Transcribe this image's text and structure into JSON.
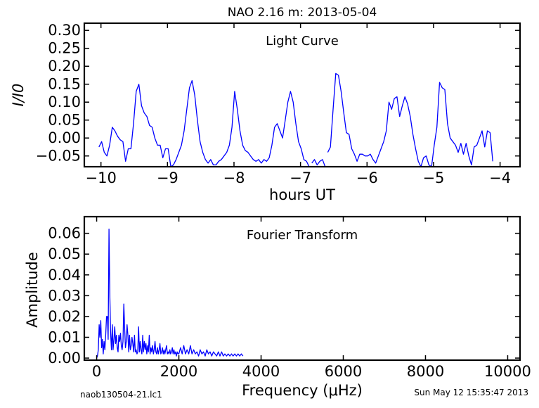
{
  "figure": {
    "title": "NAO 2.16 m:  2013-05-04",
    "footer_left": "naob130504-21.lc1",
    "footer_right": "Sun May 12 15:35:47 2013",
    "line_color": "#0000ff"
  },
  "chart_data": [
    {
      "type": "line",
      "title": "Light Curve",
      "xlabel": "hours UT",
      "ylabel": "I/I0",
      "xlim": [
        -10.25,
        -3.7
      ],
      "ylim": [
        -0.08,
        0.32
      ],
      "xticks": [
        -10,
        -9,
        -8,
        -7,
        -6,
        -5,
        -4
      ],
      "xtick_labels": [
        "−10",
        "−9",
        "−8",
        "−7",
        "−6",
        "−5",
        "−4"
      ],
      "yticks": [
        -0.05,
        0.0,
        0.05,
        0.1,
        0.15,
        0.2,
        0.25,
        0.3
      ],
      "ytick_labels": [
        "−0.05",
        "0.00",
        "0.05",
        "0.10",
        "0.15",
        "0.20",
        "0.25",
        "0.30"
      ],
      "grid": false,
      "series": [
        {
          "segments": [
            {
              "x": [
                -10.03,
                -9.99,
                -9.95,
                -9.91,
                -9.87,
                -9.83,
                -9.79,
                -9.75,
                -9.71,
                -9.67,
                -9.63,
                -9.59,
                -9.55,
                -9.51,
                -9.47,
                -9.43,
                -9.39,
                -9.35,
                -9.31,
                -9.27,
                -9.23,
                -9.19,
                -9.15,
                -9.11,
                -9.07,
                -9.03,
                -8.99,
                -8.95,
                -8.91,
                -8.87,
                -8.83,
                -8.79,
                -8.75,
                -8.71,
                -8.67,
                -8.63,
                -8.59,
                -8.55,
                -8.51,
                -8.47,
                -8.43,
                -8.39,
                -8.35,
                -8.31,
                -8.27,
                -8.23,
                -8.19,
                -8.15,
                -8.11,
                -8.07,
                -8.03,
                -7.99,
                -7.95,
                -7.91,
                -7.87,
                -7.83,
                -7.79,
                -7.75,
                -7.71,
                -7.67,
                -7.63,
                -7.59,
                -7.55,
                -7.51,
                -7.47,
                -7.43,
                -7.39,
                -7.35,
                -7.31,
                -7.27,
                -7.23,
                -7.19,
                -7.15,
                -7.11,
                -7.07,
                -7.03,
                -6.99,
                -6.95,
                -6.91,
                -6.87
              ],
              "y": [
                -0.025,
                -0.01,
                -0.04,
                -0.05,
                -0.02,
                0.03,
                0.02,
                0.005,
                -0.005,
                -0.01,
                -0.065,
                -0.03,
                -0.03,
                0.04,
                0.13,
                0.15,
                0.09,
                0.07,
                0.06,
                0.035,
                0.03,
                0.0,
                -0.02,
                -0.02,
                -0.055,
                -0.03,
                -0.03,
                -0.08,
                -0.075,
                -0.06,
                -0.04,
                -0.02,
                0.02,
                0.08,
                0.14,
                0.16,
                0.12,
                0.05,
                -0.01,
                -0.04,
                -0.06,
                -0.07,
                -0.06,
                -0.075,
                -0.075,
                -0.065,
                -0.06,
                -0.05,
                -0.04,
                -0.02,
                0.03,
                0.13,
                0.08,
                0.02,
                -0.02,
                -0.035,
                -0.04,
                -0.05,
                -0.06,
                -0.065,
                -0.06,
                -0.07,
                -0.06,
                -0.065,
                -0.055,
                -0.02,
                0.03,
                0.04,
                0.02,
                0.0,
                0.05,
                0.1,
                0.13,
                0.1,
                0.04,
                -0.01,
                -0.03,
                -0.06,
                -0.065,
                -0.08
              ]
            },
            {
              "x": [
                -6.83,
                -6.79,
                -6.75,
                -6.71,
                -6.67,
                -6.63
              ],
              "y": [
                -0.07,
                -0.06,
                -0.075,
                -0.065,
                -0.06,
                -0.08
              ]
            },
            {
              "x": [
                -6.59,
                -6.55,
                -6.51,
                -6.47,
                -6.43,
                -6.39,
                -6.35,
                -6.31,
                -6.27,
                -6.23,
                -6.19,
                -6.15,
                -6.11,
                -6.07,
                -6.03,
                -5.99,
                -5.95,
                -5.91,
                -5.87,
                -5.83,
                -5.79,
                -5.75,
                -5.71,
                -5.67,
                -5.63,
                -5.59,
                -5.55,
                -5.51,
                -5.47,
                -5.43,
                -5.39,
                -5.35,
                -5.31,
                -5.27,
                -5.23,
                -5.19,
                -5.15,
                -5.11,
                -5.07,
                -5.03,
                -4.99,
                -4.95,
                -4.91,
                -4.87,
                -4.83,
                -4.79,
                -4.75,
                -4.71,
                -4.67,
                -4.63,
                -4.59,
                -4.55,
                -4.51,
                -4.47,
                -4.43,
                -4.39,
                -4.35,
                -4.31,
                -4.27,
                -4.23,
                -4.19,
                -4.15,
                -4.11,
                -4.07,
                -4.03
              ],
              "y": [
                -0.04,
                -0.025,
                0.08,
                0.18,
                0.175,
                0.13,
                0.07,
                0.015,
                0.01,
                -0.03,
                -0.045,
                -0.065,
                -0.045,
                -0.045,
                -0.05,
                -0.05,
                -0.045,
                -0.06,
                -0.07,
                -0.05,
                -0.03,
                -0.01,
                0.02,
                0.1,
                0.08,
                0.11,
                0.115,
                0.06,
                0.09,
                0.115,
                0.095,
                0.06,
                0.01,
                -0.03,
                -0.065,
                -0.08,
                -0.055,
                -0.05,
                -0.075,
                -0.08,
                -0.02,
                0.03,
                0.155,
                0.14,
                0.135,
                0.04,
                0.0,
                -0.01,
                -0.02,
                -0.04,
                -0.015,
                -0.045,
                -0.015,
                -0.05,
                -0.075,
                -0.025,
                -0.02,
                0.0,
                0.02,
                -0.025,
                0.02,
                0.015,
                -0.065,
                null,
                null
              ],
              "y_end": [
                -0.07
              ]
            }
          ]
        }
      ]
    },
    {
      "type": "line",
      "title": "Fourier Transform",
      "xlabel": "Frequency (μHz)",
      "ylabel": "Amplitude",
      "xlim": [
        -300,
        10300
      ],
      "ylim": [
        -0.001,
        0.068
      ],
      "xticks": [
        0,
        2000,
        4000,
        6000,
        8000,
        10000
      ],
      "xtick_labels": [
        "0",
        "2000",
        "4000",
        "6000",
        "8000",
        "10000"
      ],
      "yticks": [
        0.0,
        0.01,
        0.02,
        0.03,
        0.04,
        0.05,
        0.06
      ],
      "ytick_labels": [
        "0.00",
        "0.01",
        "0.02",
        "0.03",
        "0.04",
        "0.05",
        "0.06"
      ],
      "grid": false,
      "series": [
        {
          "x": [
            0,
            20,
            40,
            60,
            80,
            100,
            120,
            140,
            160,
            180,
            200,
            220,
            240,
            260,
            280,
            300,
            320,
            340,
            360,
            380,
            400,
            420,
            440,
            460,
            480,
            500,
            520,
            540,
            560,
            580,
            600,
            620,
            640,
            660,
            680,
            700,
            720,
            740,
            760,
            780,
            800,
            820,
            840,
            860,
            880,
            900,
            920,
            940,
            960,
            980,
            1000,
            1020,
            1040,
            1060,
            1080,
            1100,
            1120,
            1140,
            1160,
            1180,
            1200,
            1220,
            1240,
            1260,
            1280,
            1300,
            1320,
            1340,
            1360,
            1380,
            1400,
            1420,
            1440,
            1460,
            1480,
            1500,
            1520,
            1540,
            1560,
            1580,
            1600,
            1620,
            1640,
            1660,
            1680,
            1700,
            1720,
            1740,
            1760,
            1780,
            1800,
            1820,
            1840,
            1860,
            1880,
            1900,
            1920,
            1940,
            1960,
            1980,
            2000,
            2040,
            2080,
            2120,
            2160,
            2200,
            2240,
            2280,
            2320,
            2360,
            2400,
            2440,
            2480,
            2520,
            2560,
            2600,
            2640,
            2680,
            2720,
            2760,
            2800,
            2840,
            2880,
            2920,
            2960,
            3000,
            3040,
            3080,
            3120,
            3160,
            3200,
            3240,
            3280,
            3320,
            3360,
            3400,
            3440,
            3480,
            3520,
            3560
          ],
          "y": [
            0.0,
            0.001,
            0.004,
            0.016,
            0.01,
            0.018,
            0.005,
            0.009,
            0.002,
            0.008,
            0.004,
            0.011,
            0.02,
            0.02,
            0.009,
            0.062,
            0.03,
            0.012,
            0.004,
            0.016,
            0.004,
            0.009,
            0.015,
            0.007,
            0.011,
            0.005,
            0.003,
            0.011,
            0.008,
            0.012,
            0.006,
            0.004,
            0.008,
            0.026,
            0.015,
            0.005,
            0.008,
            0.016,
            0.011,
            0.003,
            0.011,
            0.004,
            0.006,
            0.01,
            0.007,
            0.003,
            0.011,
            0.003,
            0.004,
            0.002,
            0.003,
            0.015,
            0.003,
            0.008,
            0.004,
            0.002,
            0.011,
            0.003,
            0.008,
            0.004,
            0.007,
            0.002,
            0.006,
            0.003,
            0.011,
            0.002,
            0.005,
            0.003,
            0.006,
            0.002,
            0.004,
            0.008,
            0.003,
            0.002,
            0.005,
            0.002,
            0.004,
            0.007,
            0.002,
            0.003,
            0.005,
            0.002,
            0.004,
            0.002,
            0.004,
            0.006,
            0.002,
            0.003,
            0.002,
            0.004,
            0.002,
            0.003,
            0.005,
            0.002,
            0.004,
            0.002,
            0.003,
            0.001,
            0.003,
            0.002,
            0.002,
            0.005,
            0.002,
            0.006,
            0.002,
            0.004,
            0.002,
            0.006,
            0.002,
            0.004,
            0.002,
            0.003,
            0.001,
            0.004,
            0.002,
            0.003,
            0.001,
            0.004,
            0.002,
            0.003,
            0.001,
            0.003,
            0.002,
            0.001,
            0.003,
            0.001,
            0.003,
            0.001,
            0.002,
            0.001,
            0.002,
            0.001,
            0.002,
            0.001,
            0.002,
            0.001,
            0.002,
            0.001,
            0.002,
            0.001
          ]
        }
      ]
    }
  ]
}
